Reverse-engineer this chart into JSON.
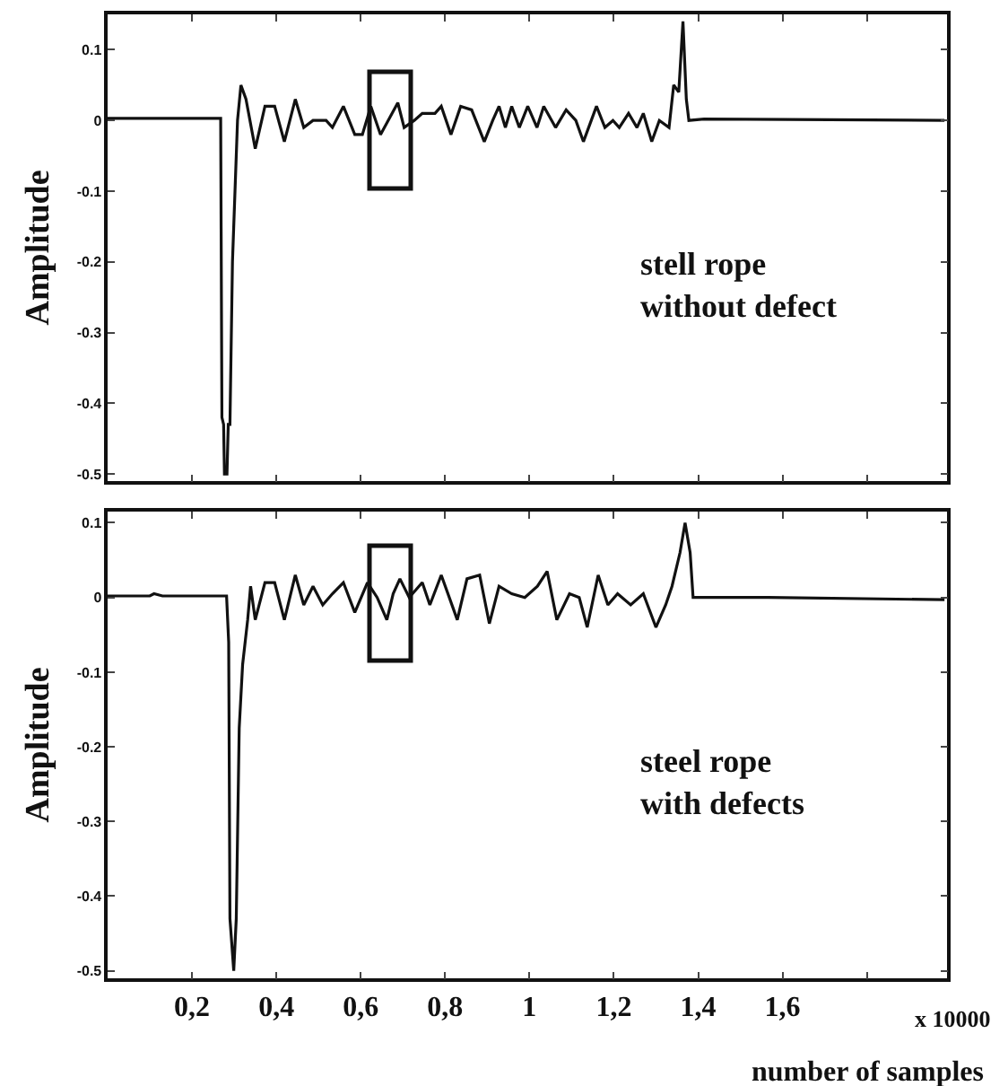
{
  "chart_data": [
    {
      "type": "line",
      "ylabel": "Amplitude",
      "annotations": [
        "stell rope\nwithout defect"
      ],
      "tick_labels": "y",
      "grid": false,
      "xlim": [
        0,
        1.99
      ],
      "xticks": [
        {
          "value": 0.2,
          "label": null
        },
        {
          "value": 0.4,
          "label": null
        },
        {
          "value": 0.6,
          "label": null
        },
        {
          "value": 0.8,
          "label": null
        },
        {
          "value": 1,
          "label": null
        },
        {
          "value": 1.2,
          "label": null
        },
        {
          "value": 1.4,
          "label": null
        },
        {
          "value": 1.6,
          "label": null
        },
        {
          "value": 1.8,
          "label": null
        }
      ],
      "ylim": [
        -0.51,
        0.15
      ],
      "yticks": [
        {
          "value": 0.1,
          "label": "0.1"
        },
        0,
        -0.1,
        -0.2,
        -0.3,
        -0.4,
        -0.5
      ],
      "series": [
        {
          "color": "#111111",
          "x": [
            0,
            0.268,
            0.271,
            0.275,
            0.277,
            0.283,
            0.286,
            0.29,
            0.296,
            0.302,
            0.308,
            0.316,
            0.322,
            0.328,
            0.35,
            0.373,
            0.396,
            0.419,
            0.445,
            0.465,
            0.487,
            0.518,
            0.533,
            0.559,
            0.586,
            0.604,
            0.624,
            0.647,
            0.688,
            0.703,
            0.727,
            0.746,
            0.776,
            0.791,
            0.814,
            0.837,
            0.863,
            0.893,
            0.913,
            0.928,
            0.943,
            0.958,
            0.976,
            0.996,
            1.018,
            1.034,
            1.062,
            1.087,
            1.11,
            1.128,
            1.159,
            1.179,
            1.198,
            1.213,
            1.235,
            1.255,
            1.27,
            1.29,
            1.308,
            1.331,
            1.342,
            1.354,
            1.364,
            1.372,
            1.378,
            1.414,
            1.984
          ],
          "values": [
            0.003,
            0.003,
            -0.42,
            -0.43,
            -0.5,
            -0.5,
            -0.43,
            -0.43,
            -0.2,
            -0.1,
            0,
            0.05,
            0.04,
            0.03,
            -0.04,
            0.02,
            0.02,
            -0.03,
            0.03,
            -0.01,
            0,
            0,
            -0.01,
            0.02,
            -0.02,
            -0.02,
            0.02,
            -0.02,
            0.025,
            -0.01,
            0,
            0.01,
            0.01,
            0.02,
            -0.02,
            0.02,
            0.015,
            -0.03,
            0,
            0.02,
            -0.01,
            0.02,
            -0.01,
            0.02,
            -0.01,
            0.02,
            -0.01,
            0.015,
            0,
            -0.03,
            0.02,
            -0.01,
            0,
            -0.01,
            0.01,
            -0.01,
            0.01,
            -0.03,
            0,
            -0.01,
            0.05,
            0.04,
            0.14,
            0.03,
            0,
            0.002,
            0
          ]
        }
      ]
    },
    {
      "type": "line",
      "ylabel": "Amplitude",
      "xlabel": "number of samples",
      "annotations": [
        "steel rope\nwith defects",
        "x 10000"
      ],
      "grid": false,
      "xlim": [
        0,
        1.99
      ],
      "xticks": [
        {
          "value": 0.2,
          "label": "0,2"
        },
        {
          "value": 0.4,
          "label": "0,4"
        },
        {
          "value": 0.6,
          "label": "0,6"
        },
        {
          "value": 0.8,
          "label": "0,8"
        },
        1,
        {
          "value": 1.2,
          "label": "1,2"
        },
        {
          "value": 1.4,
          "label": "1,4"
        },
        {
          "value": 1.6,
          "label": "1,6"
        },
        {
          "value": 1.8,
          "label": null
        }
      ],
      "ylim": [
        -0.51,
        0.115
      ],
      "yticks": [
        {
          "value": 0.1,
          "label": "0.1"
        },
        0,
        -0.1,
        -0.2,
        -0.3,
        -0.4,
        -0.5
      ],
      "series": [
        {
          "color": "#111111",
          "x": [
            0,
            0.1,
            0.11,
            0.13,
            0.282,
            0.287,
            0.29,
            0.299,
            0.305,
            0.312,
            0.32,
            0.332,
            0.339,
            0.35,
            0.373,
            0.396,
            0.419,
            0.445,
            0.465,
            0.487,
            0.51,
            0.533,
            0.559,
            0.586,
            0.616,
            0.639,
            0.662,
            0.677,
            0.693,
            0.715,
            0.746,
            0.764,
            0.791,
            0.829,
            0.852,
            0.882,
            0.905,
            0.928,
            0.958,
            0.989,
            1.019,
            1.042,
            1.065,
            1.095,
            1.118,
            1.137,
            1.163,
            1.186,
            1.209,
            1.24,
            1.27,
            1.3,
            1.323,
            1.338,
            1.357,
            1.369,
            1.381,
            1.388,
            1.566,
            1.984
          ],
          "values": [
            0.002,
            0.002,
            0.005,
            0.002,
            0.002,
            -0.06,
            -0.43,
            -0.5,
            -0.43,
            -0.175,
            -0.09,
            -0.03,
            0.015,
            -0.03,
            0.02,
            0.02,
            -0.03,
            0.03,
            -0.01,
            0.015,
            -0.01,
            0.005,
            0.02,
            -0.02,
            0.02,
            0,
            -0.03,
            0.005,
            0.025,
            0,
            0.02,
            -0.01,
            0.03,
            -0.03,
            0.025,
            0.03,
            -0.035,
            0.015,
            0.005,
            0,
            0.015,
            0.035,
            -0.03,
            0.005,
            0,
            -0.04,
            0.03,
            -0.01,
            0.005,
            -0.01,
            0.005,
            -0.04,
            -0.01,
            0.015,
            0.06,
            0.1,
            0.06,
            0,
            0,
            -0.003
          ]
        }
      ]
    }
  ]
}
